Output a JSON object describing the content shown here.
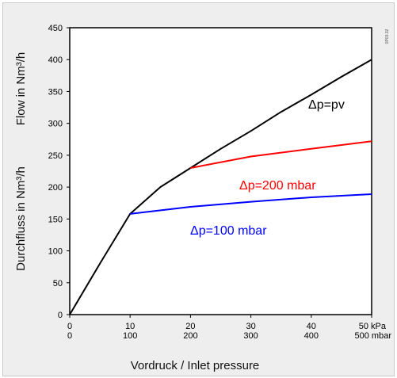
{
  "chart_data": {
    "type": "line",
    "xlabel": "Vordruck / Inlet pressure",
    "ylabel_de": "Durchfluss in Nm³/h",
    "ylabel_en": "Flow in Nm³/h",
    "side_code": "0P03.02",
    "grid": true,
    "xlim": [
      0,
      50
    ],
    "ylim": [
      0,
      450
    ],
    "x_ticks": [
      0,
      10,
      20,
      30,
      40,
      50
    ],
    "x_tick_labels_kpa": [
      "0",
      "10",
      "20",
      "30",
      "40",
      "50 kPa"
    ],
    "x_tick_labels_mbar": [
      "0",
      "100",
      "200",
      "300",
      "400",
      "500 mbar"
    ],
    "y_ticks": [
      0,
      50,
      100,
      150,
      200,
      250,
      300,
      350,
      400,
      450
    ],
    "y_tick_labels": [
      "0",
      "50",
      "100",
      "150",
      "200",
      "250",
      "300",
      "350",
      "400",
      "450"
    ],
    "series": [
      {
        "name": "Δp=pv",
        "color": "#000000",
        "x": [
          0,
          5,
          10,
          15,
          20,
          25,
          30,
          35,
          40,
          45,
          50
        ],
        "y": [
          0,
          80,
          158,
          200,
          230,
          260,
          288,
          318,
          345,
          373,
          400
        ]
      },
      {
        "name": "Δp=200 mbar",
        "color": "#ff0000",
        "x": [
          20,
          30,
          40,
          50
        ],
        "y": [
          230,
          248,
          260,
          272
        ]
      },
      {
        "name": "Δp=100 mbar",
        "color": "#0000ff",
        "x": [
          10,
          20,
          30,
          40,
          50
        ],
        "y": [
          158,
          169,
          177,
          184,
          189
        ]
      }
    ],
    "annotations": [
      {
        "text": "Δp=pv",
        "series": 0,
        "color": "#000000"
      },
      {
        "text": "Δp=200 mbar",
        "series": 1,
        "color": "#ff0000"
      },
      {
        "text": "Δp=100 mbar",
        "series": 2,
        "color": "#0000ff"
      }
    ]
  }
}
